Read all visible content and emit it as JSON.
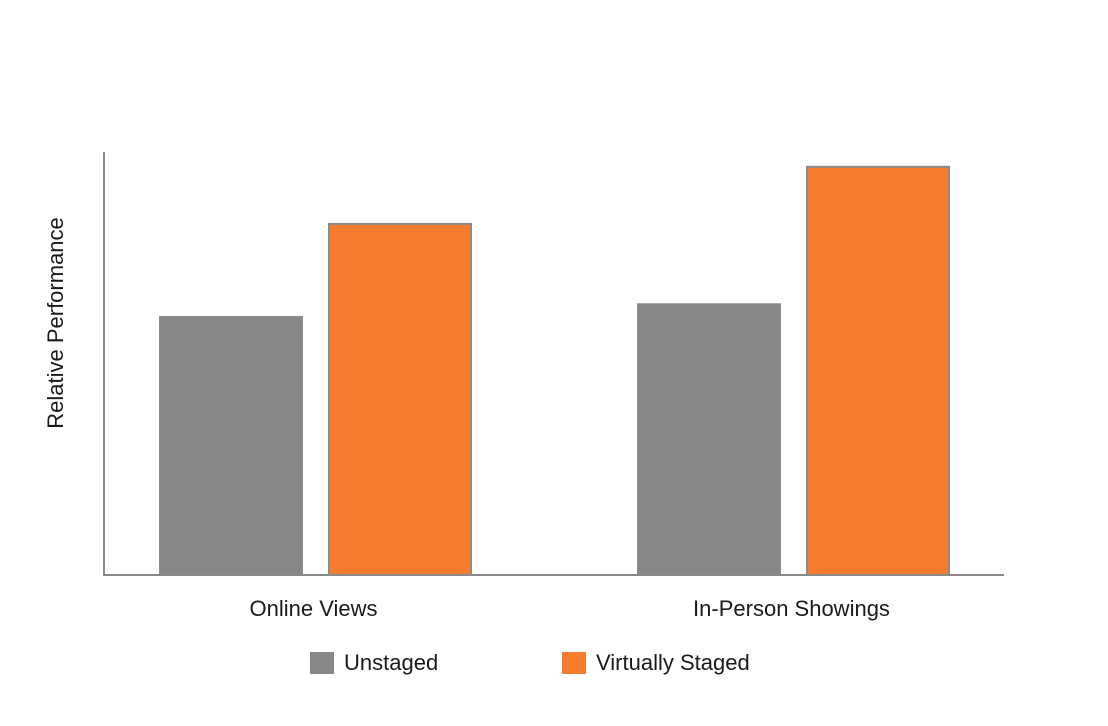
{
  "chart_data": {
    "type": "bar",
    "y_label": "Relative Performance",
    "categories": [
      "Online Views",
      "In-Person Showings"
    ],
    "series": [
      {
        "name": "Unstaged",
        "color": "#878787",
        "values": [
          61,
          64
        ]
      },
      {
        "name": "Virtually Staged",
        "color": "#f57c2c",
        "values": [
          83,
          96.5
        ]
      }
    ],
    "ylim": [
      0,
      100
    ],
    "legend": "bottom"
  }
}
